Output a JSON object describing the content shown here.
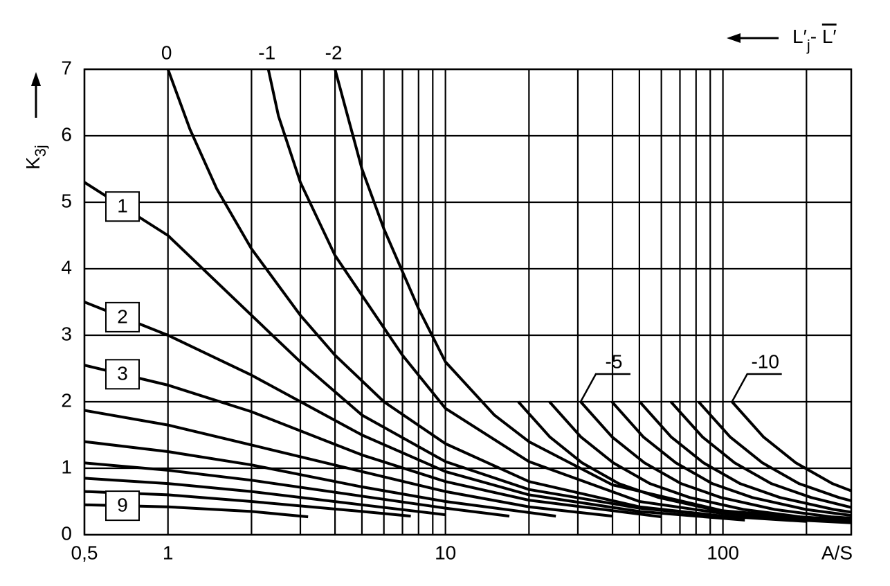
{
  "chart_data": {
    "type": "line",
    "x_label": "A/S",
    "y_label": {
      "main": "K",
      "sub": "3j"
    },
    "top_label": {
      "main": "L′",
      "sub": "j",
      "sep": "- ",
      "over": "L′"
    },
    "log_x": true,
    "grid": true,
    "xlim": [
      0.5,
      290
    ],
    "ylim": [
      0,
      7
    ],
    "xticks": [
      {
        "value": 0.5,
        "label": "0,5"
      },
      1,
      10,
      100
    ],
    "xgrid": [
      2,
      3,
      4,
      5,
      6,
      7,
      8,
      9,
      20,
      30,
      40,
      50,
      60,
      70,
      80,
      90,
      200
    ],
    "yticks": [
      0,
      1,
      2,
      3,
      4,
      5,
      6,
      7
    ],
    "series": [
      {
        "name": "0",
        "color": "#000000",
        "x": [
          1,
          1.2,
          1.5,
          2,
          3,
          4,
          6,
          10,
          20,
          50,
          100,
          290
        ],
        "values": [
          7,
          6.1,
          5.2,
          4.3,
          3.3,
          2.7,
          2.0,
          1.37,
          0.8,
          0.42,
          0.28,
          0.18
        ]
      },
      {
        "name": "-1",
        "color": "#000000",
        "x": [
          2.3,
          2.5,
          3,
          4,
          5,
          7,
          10,
          20,
          50,
          100,
          290
        ],
        "values": [
          7,
          6.3,
          5.3,
          4.2,
          3.6,
          2.7,
          1.9,
          1.1,
          0.5,
          0.32,
          0.2
        ]
      },
      {
        "name": "-2",
        "color": "#000000",
        "x": [
          4,
          5,
          6,
          8,
          10,
          15,
          20,
          40,
          100,
          290
        ],
        "values": [
          7,
          5.5,
          4.6,
          3.4,
          2.6,
          1.8,
          1.4,
          0.75,
          0.36,
          0.2
        ]
      },
      {
        "color": "#000000",
        "x": [
          18.3,
          23.8,
          31.1,
          42.1,
          58.6,
          91.5,
          146.4,
          290
        ],
        "values": [
          2,
          1.47,
          1.08,
          0.77,
          0.56,
          0.38,
          0.27,
          0.2
        ]
      },
      {
        "color": "#000000",
        "x": [
          23.7,
          30.8,
          40.3,
          54.5,
          75.8,
          118.5,
          189.6,
          290
        ],
        "values": [
          2,
          1.47,
          1.08,
          0.77,
          0.56,
          0.38,
          0.27,
          0.22
        ]
      },
      {
        "name": "-5",
        "color": "#000000",
        "x": [
          30.7,
          39.9,
          52.2,
          70.6,
          98.2,
          153.5,
          245.6,
          290
        ],
        "values": [
          2,
          1.47,
          1.08,
          0.77,
          0.56,
          0.38,
          0.27,
          0.25
        ]
      },
      {
        "color": "#000000",
        "x": [
          39.8,
          51.7,
          67.7,
          91.5,
          127.4,
          199,
          290
        ],
        "values": [
          2,
          1.47,
          1.08,
          0.77,
          0.56,
          0.38,
          0.29
        ]
      },
      {
        "color": "#000000",
        "x": [
          50.1,
          65.1,
          85.2,
          115.2,
          160.3,
          250.5,
          290
        ],
        "values": [
          2,
          1.47,
          1.08,
          0.77,
          0.56,
          0.38,
          0.34
        ]
      },
      {
        "color": "#000000",
        "x": [
          64.9,
          84.4,
          110.3,
          149.3,
          207.7,
          290
        ],
        "values": [
          2,
          1.47,
          1.08,
          0.77,
          0.56,
          0.41
        ]
      },
      {
        "color": "#000000",
        "x": [
          81.7,
          106.2,
          138.9,
          187.9,
          261.4,
          290
        ],
        "values": [
          2,
          1.47,
          1.08,
          0.77,
          0.56,
          0.51
        ]
      },
      {
        "name": "-10",
        "color": "#000000",
        "x": [
          107.8,
          140.1,
          183.3,
          247.9,
          290
        ],
        "values": [
          2,
          1.47,
          1.08,
          0.77,
          0.66
        ]
      },
      {
        "name": "1",
        "color": "#000000",
        "x": [
          0.5,
          1,
          2,
          3,
          5,
          10,
          20,
          50,
          100,
          200
        ],
        "values": [
          5.3,
          4.5,
          3.3,
          2.6,
          1.8,
          1.1,
          0.68,
          0.4,
          0.28,
          0.2
        ]
      },
      {
        "name": "2",
        "color": "#000000",
        "x": [
          0.5,
          1,
          2,
          5,
          10,
          20,
          50,
          120
        ],
        "values": [
          3.5,
          3.0,
          2.4,
          1.5,
          0.95,
          0.6,
          0.35,
          0.22
        ]
      },
      {
        "name": "3",
        "color": "#000000",
        "x": [
          0.5,
          1,
          2,
          5,
          10,
          20,
          60
        ],
        "values": [
          2.55,
          2.25,
          1.85,
          1.2,
          0.8,
          0.52,
          0.27
        ]
      },
      {
        "color": "#000000",
        "x": [
          0.5,
          1,
          2,
          5,
          10,
          20,
          40
        ],
        "values": [
          1.87,
          1.65,
          1.35,
          0.95,
          0.65,
          0.42,
          0.28
        ]
      },
      {
        "color": "#000000",
        "x": [
          0.5,
          1,
          2,
          5,
          10,
          25
        ],
        "values": [
          1.4,
          1.25,
          1.05,
          0.72,
          0.5,
          0.28
        ]
      },
      {
        "color": "#000000",
        "x": [
          0.5,
          1,
          2,
          5,
          10,
          17
        ],
        "values": [
          1.08,
          0.97,
          0.82,
          0.58,
          0.4,
          0.28
        ]
      },
      {
        "color": "#000000",
        "x": [
          0.5,
          1,
          2,
          5,
          10
        ],
        "values": [
          0.85,
          0.77,
          0.65,
          0.45,
          0.3
        ]
      },
      {
        "color": "#000000",
        "x": [
          0.5,
          1,
          2,
          5,
          7.5
        ],
        "values": [
          0.65,
          0.6,
          0.5,
          0.35,
          0.28
        ]
      },
      {
        "name": "9",
        "color": "#000000",
        "x": [
          0.5,
          1,
          2,
          3.2
        ],
        "values": [
          0.45,
          0.42,
          0.35,
          0.27
        ]
      }
    ]
  }
}
